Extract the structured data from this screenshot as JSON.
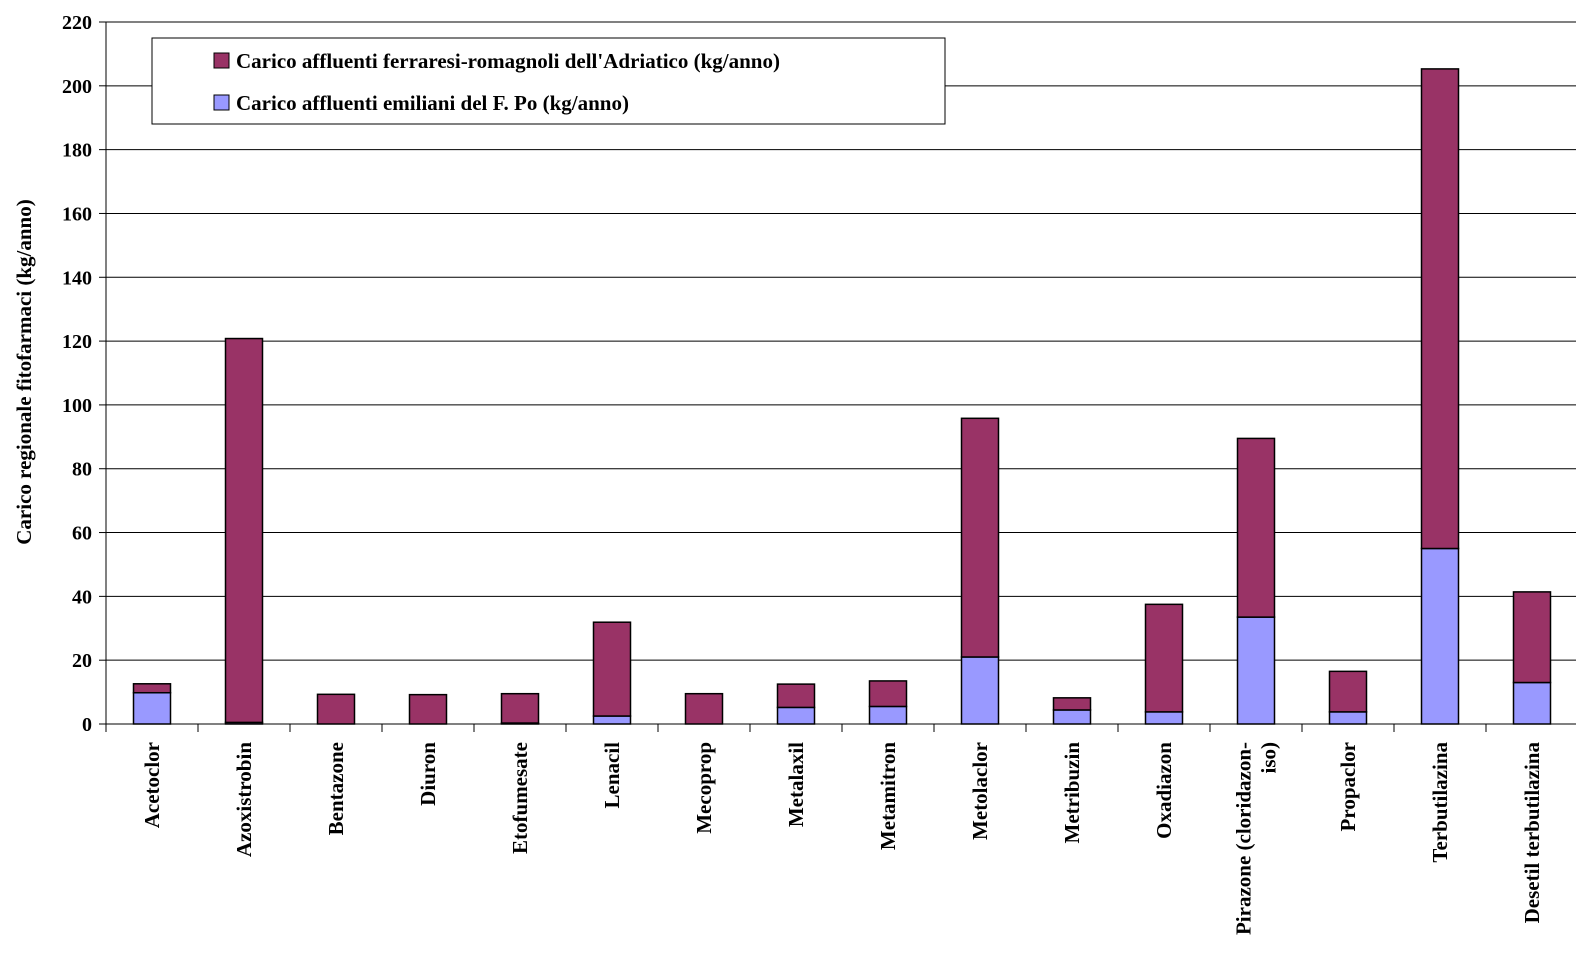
{
  "chart_data": {
    "type": "bar",
    "stacked": true,
    "title": "",
    "xlabel": "",
    "ylabel": "Carico regionale fitofarmaci (kg/anno)",
    "ylim": [
      0,
      220
    ],
    "yticks": [
      0,
      20,
      40,
      60,
      80,
      100,
      120,
      140,
      160,
      180,
      200,
      220
    ],
    "grid": true,
    "legend_position": "top-left",
    "categories": [
      "Acetoclor",
      "Azoxistrobin",
      "Bentazone",
      "Diuron",
      "Etofumesate",
      "Lenacil",
      "Mecoprop",
      "Metalaxil",
      "Metamitron",
      "Metolaclor",
      "Metribuzin",
      "Oxadiazon",
      "Pirazone (cloridazon-iso)",
      "Propaclor",
      "Terbutilazina",
      "Desetil terbutilazina"
    ],
    "category_lines": [
      [
        "Acetoclor"
      ],
      [
        "Azoxistrobin"
      ],
      [
        "Bentazone"
      ],
      [
        "Diuron"
      ],
      [
        "Etofumesate"
      ],
      [
        "Lenacil"
      ],
      [
        "Mecoprop"
      ],
      [
        "Metalaxil"
      ],
      [
        "Metamitron"
      ],
      [
        "Metolaclor"
      ],
      [
        "Metribuzin"
      ],
      [
        "Oxadiazon"
      ],
      [
        "Pirazone (cloridazon-",
        "iso)"
      ],
      [
        "Propaclor"
      ],
      [
        "Terbutilazina"
      ],
      [
        "Desetil terbutilazina"
      ]
    ],
    "series": [
      {
        "name": "Carico affluenti emiliani del F. Po (kg/anno)",
        "color": "#9999ff",
        "values": [
          9.8,
          0.5,
          0,
          0,
          0.3,
          2.5,
          0,
          5.2,
          5.5,
          21,
          4.4,
          3.8,
          33.5,
          3.8,
          55,
          13
        ]
      },
      {
        "name": "Carico affluenti ferraresi-romagnoli dell'Adriatico (kg/anno)",
        "color": "#993366",
        "values": [
          2.8,
          120.3,
          9.3,
          9.2,
          9.2,
          29.4,
          9.5,
          7.3,
          8.0,
          74.8,
          3.8,
          33.7,
          56.0,
          12.7,
          150.3,
          28.4
        ]
      }
    ]
  }
}
